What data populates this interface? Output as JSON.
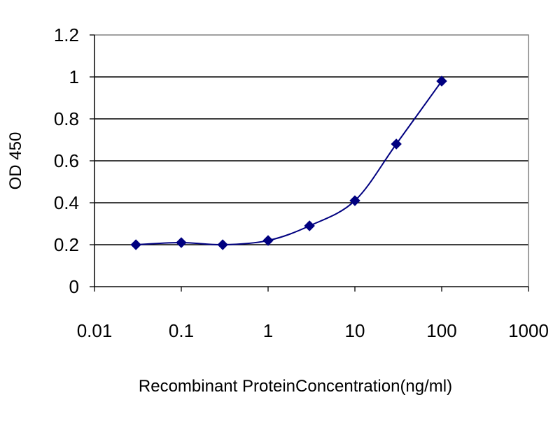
{
  "chart_data": {
    "type": "line",
    "title": "",
    "xlabel": "Recombinant ProteinConcentration(ng/ml)",
    "ylabel": "OD 450",
    "x_scale": "log",
    "xlim": [
      0.01,
      1000
    ],
    "ylim": [
      0,
      1.2
    ],
    "x_ticks": [
      "0.01",
      "0.1",
      "1",
      "10",
      "100",
      "1000"
    ],
    "y_ticks": [
      "0",
      "0.2",
      "0.4",
      "0.6",
      "0.8",
      "1",
      "1.2"
    ],
    "grid": "horizontal",
    "plot_background": "#ffffff",
    "series_color": "#000080",
    "gridline_color": "#000000",
    "marker": "diamond",
    "series": [
      {
        "x": [
          0.03,
          0.1,
          0.3,
          1,
          3,
          10,
          30,
          100
        ],
        "y": [
          0.2,
          0.21,
          0.2,
          0.22,
          0.29,
          0.41,
          0.68,
          0.98
        ]
      }
    ]
  }
}
